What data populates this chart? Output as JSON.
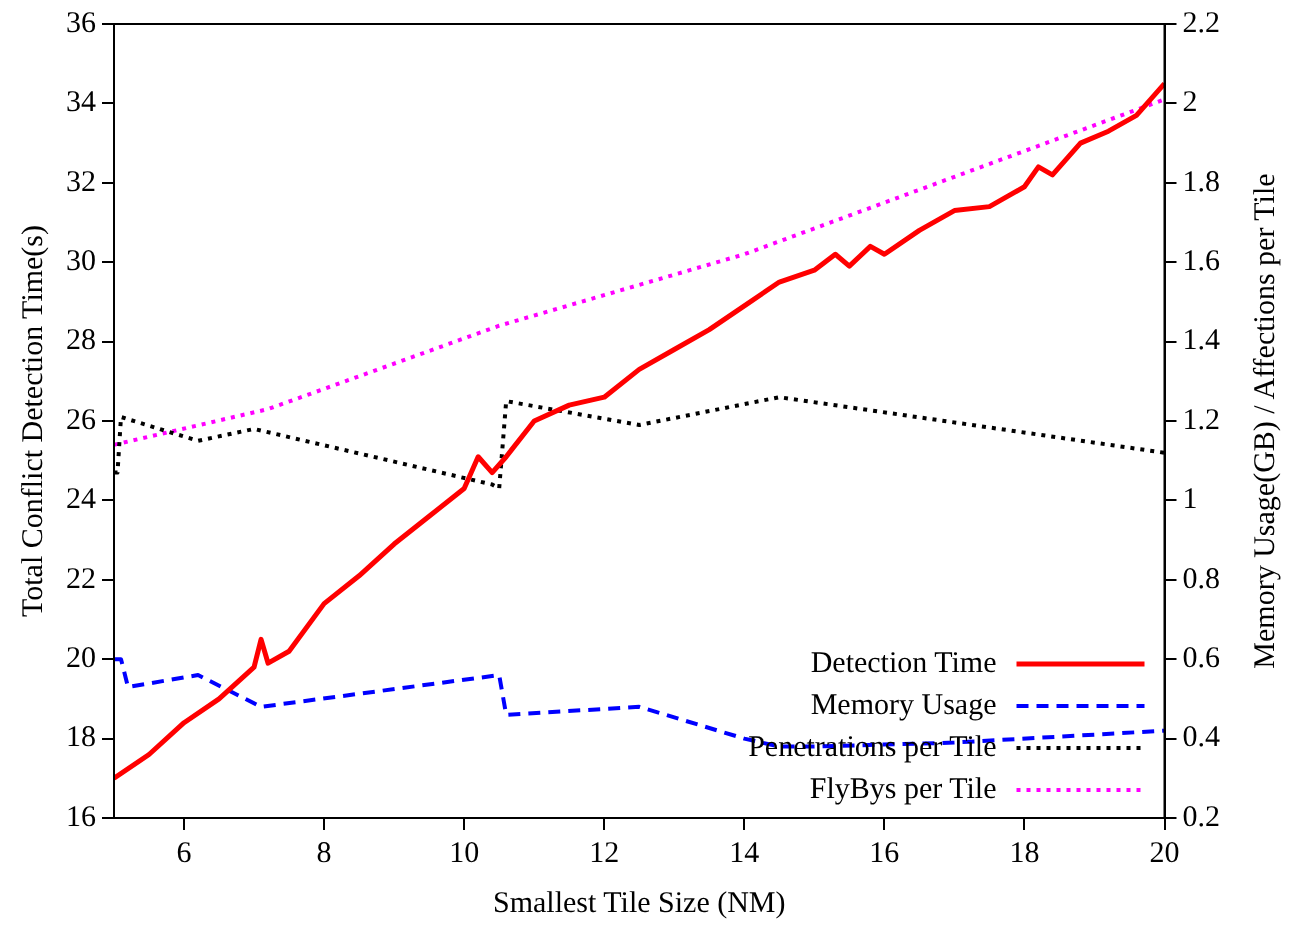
{
  "chart_data": {
    "type": "line",
    "xlabel": "Smallest Tile Size (NM)",
    "ylabel": "Total Conflict Detection Time(s)",
    "y2label": "Memory Usage(GB) / Affections per Tile",
    "xlim": [
      5,
      20
    ],
    "xticks": [
      6,
      8,
      10,
      12,
      14,
      16,
      18,
      20
    ],
    "ylim": [
      16,
      36
    ],
    "yticks": [
      16,
      18,
      20,
      22,
      24,
      26,
      28,
      30,
      32,
      34,
      36
    ],
    "y2lim": [
      0.2,
      2.2
    ],
    "y2ticks": [
      0.2,
      0.4,
      0.6,
      0.8,
      1,
      1.2,
      1.4,
      1.6,
      1.8,
      2,
      2.2
    ],
    "grid": false,
    "legend": "bottom right",
    "marker": "none",
    "series": [
      {
        "name": "Detection Time",
        "color": "#ff0000",
        "line_style": "solid",
        "x": [
          5,
          5.5,
          6,
          6.5,
          7,
          7.1,
          7.2,
          7.5,
          8,
          8.5,
          9,
          9.5,
          10,
          10.2,
          10.4,
          10.6,
          11,
          11.5,
          12,
          12.5,
          13,
          13.5,
          14,
          14.5,
          15,
          15.3,
          15.5,
          15.8,
          16,
          16.5,
          17,
          17.5,
          18,
          18.2,
          18.4,
          18.8,
          19.2,
          19.6,
          20
        ],
        "values": [
          17.0,
          17.6,
          18.4,
          19.0,
          19.8,
          20.5,
          19.9,
          20.2,
          21.4,
          22.1,
          22.9,
          23.6,
          24.3,
          25.1,
          24.7,
          25.1,
          26.0,
          26.4,
          26.6,
          27.3,
          27.8,
          28.3,
          28.9,
          29.5,
          29.8,
          30.2,
          29.9,
          30.4,
          30.2,
          30.8,
          31.3,
          31.4,
          31.9,
          32.4,
          32.2,
          33.0,
          33.3,
          33.7,
          34.5
        ]
      },
      {
        "name": "Memory Usage",
        "color": "#0000ff",
        "line_style": "dashed",
        "axis": "y2",
        "x": [
          5,
          5.1,
          5.2,
          6.2,
          7.1,
          10.5,
          10.6,
          12.5,
          14,
          14.5,
          15,
          17,
          20
        ],
        "values": [
          0.6,
          0.6,
          0.53,
          0.56,
          0.48,
          0.56,
          0.46,
          0.48,
          0.4,
          0.38,
          0.38,
          0.39,
          0.42
        ]
      },
      {
        "name": "Penetrations per Tile",
        "color": "#000000",
        "line_style": "dotted",
        "axis": "y2",
        "x": [
          5,
          5.05,
          5.1,
          6.2,
          7,
          10.4,
          10.5,
          10.6,
          12.5,
          14.5,
          20
        ],
        "values": [
          1.07,
          1.07,
          1.21,
          1.15,
          1.18,
          1.04,
          1.03,
          1.25,
          1.19,
          1.26,
          1.12
        ]
      },
      {
        "name": "FlyBys per Tile",
        "color": "#ff00ff",
        "line_style": "dotted",
        "axis": "y2",
        "x": [
          5,
          7.2,
          10.5,
          14,
          20
        ],
        "values": [
          1.14,
          1.23,
          1.44,
          1.62,
          2.01
        ]
      }
    ]
  }
}
